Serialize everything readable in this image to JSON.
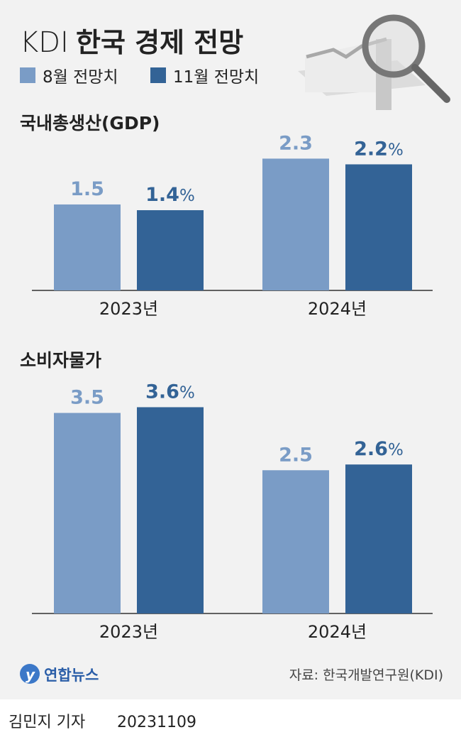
{
  "header": {
    "title_prefix": "KDI",
    "title_main": "한국 경제 전망"
  },
  "legend": [
    {
      "label": "8월 전망치",
      "color": "#7a9cc6"
    },
    {
      "label": "11월 전망치",
      "color": "#336396"
    }
  ],
  "chart_data": [
    {
      "type": "bar",
      "title": "국내총생산(GDP)",
      "categories": [
        "2023년",
        "2024년"
      ],
      "unit": "%",
      "series": [
        {
          "name": "8월 전망치",
          "values": [
            1.5,
            2.3
          ]
        },
        {
          "name": "11월 전망치",
          "values": [
            1.4,
            2.2
          ]
        }
      ],
      "ylim": [
        0,
        3.5
      ]
    },
    {
      "type": "bar",
      "title": "소비자물가",
      "categories": [
        "2023년",
        "2024년"
      ],
      "unit": "%",
      "series": [
        {
          "name": "8월 전망치",
          "values": [
            3.5,
            2.5
          ]
        },
        {
          "name": "11월 전망치",
          "values": [
            3.6,
            2.6
          ]
        }
      ],
      "ylim": [
        0,
        3.5
      ]
    }
  ],
  "footer": {
    "source": "자료: 한국개발연구원(KDI)",
    "logo": "연합뉴스",
    "byline": "김민지 기자",
    "date": "20231109"
  }
}
